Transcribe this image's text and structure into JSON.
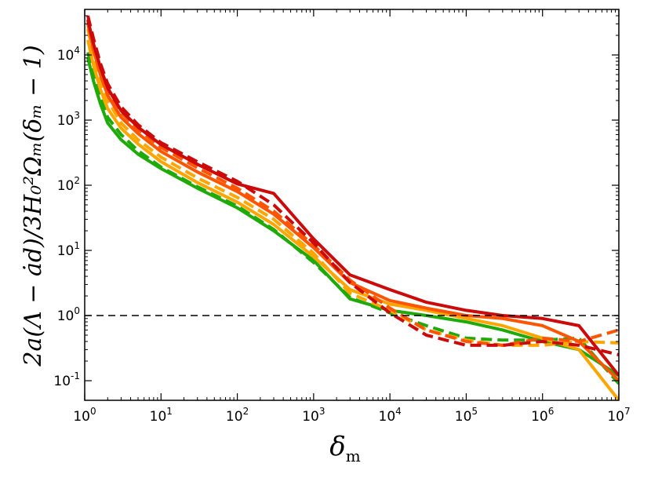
{
  "chart_data": {
    "type": "line",
    "title": "",
    "xlabel": "δ",
    "xlabel_sub": "m",
    "ylabel": "2a(Λ − ȧd)/3H₀²Ωₘ(δₘ − 1)",
    "xscale": "log",
    "yscale": "log",
    "xlim": [
      1,
      10000000
    ],
    "ylim": [
      0.05,
      50000
    ],
    "x_ticks": [
      1,
      10,
      100,
      1000,
      10000,
      100000,
      1000000,
      10000000
    ],
    "x_tick_labels": [
      {
        "base": "10",
        "exp": "0"
      },
      {
        "base": "10",
        "exp": "1"
      },
      {
        "base": "10",
        "exp": "2"
      },
      {
        "base": "10",
        "exp": "3"
      },
      {
        "base": "10",
        "exp": "4"
      },
      {
        "base": "10",
        "exp": "5"
      },
      {
        "base": "10",
        "exp": "6"
      },
      {
        "base": "10",
        "exp": "7"
      }
    ],
    "y_ticks": [
      0.1,
      1,
      10,
      100,
      1000,
      10000
    ],
    "y_tick_labels": [
      {
        "base": "10",
        "exp": "-1"
      },
      {
        "base": "10",
        "exp": "0"
      },
      {
        "base": "10",
        "exp": "1"
      },
      {
        "base": "10",
        "exp": "2"
      },
      {
        "base": "10",
        "exp": "3"
      },
      {
        "base": "10",
        "exp": "4"
      }
    ],
    "reference_line": {
      "y": 1,
      "style": "dashed",
      "color": "#000000"
    },
    "legend": "none",
    "grid": false,
    "series": [
      {
        "color": "#1faa0a",
        "style": "solid",
        "x": [
          1.1,
          1.3,
          1.6,
          2,
          3,
          5,
          10,
          30,
          100,
          300,
          1000,
          3000,
          10000,
          30000,
          100000,
          300000,
          1000000,
          3000000,
          10000000
        ],
        "y": [
          9000,
          4000,
          1800,
          900,
          500,
          300,
          180,
          90,
          45,
          20,
          7,
          1.8,
          1.2,
          1.0,
          0.8,
          0.6,
          0.4,
          0.3,
          0.12
        ]
      },
      {
        "color": "#1faa0a",
        "style": "dashed",
        "x": [
          1.1,
          1.3,
          1.6,
          2,
          3,
          5,
          10,
          30,
          100,
          300,
          1000,
          3000,
          10000,
          30000,
          100000,
          300000,
          1000000,
          3000000,
          10000000
        ],
        "y": [
          11000,
          5000,
          2200,
          1100,
          600,
          340,
          190,
          95,
          48,
          21,
          6.5,
          1.9,
          1.1,
          0.7,
          0.45,
          0.42,
          0.42,
          0.45,
          0.09
        ]
      },
      {
        "color": "#ffa500",
        "style": "solid",
        "x": [
          1.1,
          1.3,
          1.6,
          2,
          3,
          5,
          10,
          30,
          100,
          300,
          1000,
          3000,
          10000,
          30000,
          100000,
          300000,
          1000000,
          3000000,
          10000000
        ],
        "y": [
          17000,
          7000,
          3000,
          1500,
          750,
          430,
          230,
          110,
          55,
          25,
          8,
          2.5,
          1.5,
          1.2,
          0.9,
          0.7,
          0.45,
          0.3,
          0.05
        ]
      },
      {
        "color": "#ffa500",
        "style": "dashed",
        "x": [
          1.1,
          1.3,
          1.6,
          2,
          3,
          5,
          10,
          30,
          100,
          300,
          1000,
          3000,
          10000,
          30000,
          100000,
          300000,
          1000000,
          3000000,
          10000000
        ],
        "y": [
          25000,
          10000,
          4200,
          2000,
          900,
          500,
          270,
          130,
          65,
          30,
          9,
          2.2,
          1.2,
          0.6,
          0.42,
          0.35,
          0.35,
          0.4,
          0.38
        ]
      },
      {
        "color": "#ff5500",
        "style": "solid",
        "x": [
          1.1,
          1.3,
          1.6,
          2,
          3,
          5,
          10,
          30,
          100,
          300,
          1000,
          3000,
          10000,
          30000,
          100000,
          300000,
          1000000,
          3000000,
          10000000
        ],
        "y": [
          30000,
          12000,
          5000,
          2400,
          1100,
          620,
          330,
          160,
          80,
          36,
          11,
          3.2,
          1.7,
          1.3,
          1.0,
          0.9,
          0.7,
          0.4,
          0.1
        ]
      },
      {
        "color": "#ff5500",
        "style": "dashed",
        "x": [
          1.1,
          1.3,
          1.6,
          2,
          3,
          5,
          10,
          30,
          100,
          300,
          1000,
          3000,
          10000,
          30000,
          100000,
          300000,
          1000000,
          3000000,
          10000000
        ],
        "y": [
          33000,
          14000,
          6000,
          2900,
          1300,
          720,
          380,
          185,
          90,
          40,
          12,
          3.5,
          1.3,
          0.6,
          0.4,
          0.35,
          0.45,
          0.4,
          0.6
        ]
      },
      {
        "color": "#cc0a0a",
        "style": "solid",
        "x": [
          1.1,
          1.3,
          1.6,
          2,
          3,
          5,
          10,
          30,
          100,
          300,
          1000,
          3000,
          10000,
          30000,
          100000,
          300000,
          1000000,
          3000000,
          10000000
        ],
        "y": [
          35000,
          15000,
          6500,
          3100,
          1400,
          780,
          420,
          210,
          105,
          75,
          15,
          4.2,
          2.5,
          1.6,
          1.2,
          1.0,
          0.9,
          0.7,
          0.12
        ]
      },
      {
        "color": "#cc0a0a",
        "style": "dashed",
        "x": [
          1.1,
          1.3,
          1.6,
          2,
          3,
          5,
          10,
          30,
          100,
          300,
          1000,
          3000,
          10000,
          30000,
          100000,
          300000,
          1000000,
          3000000,
          10000000
        ],
        "y": [
          40000,
          18000,
          7500,
          3600,
          1600,
          850,
          450,
          230,
          115,
          50,
          13,
          3.2,
          1.1,
          0.5,
          0.35,
          0.35,
          0.4,
          0.35,
          0.25
        ]
      }
    ]
  }
}
